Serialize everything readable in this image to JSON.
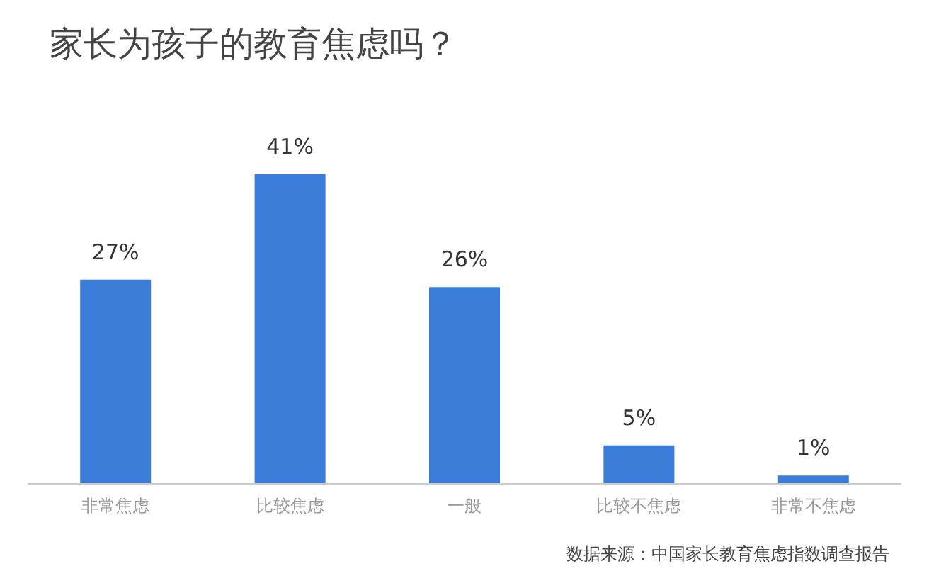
{
  "chart_data": {
    "type": "bar",
    "title": "家长为孩子的教育焦虑吗？",
    "categories": [
      "非常焦虑",
      "比较焦虑",
      "一般",
      "比较不焦虑",
      "非常不焦虑"
    ],
    "values": [
      27,
      41,
      26,
      5,
      1
    ],
    "value_labels": [
      "27%",
      "41%",
      "26%",
      "5%",
      "1%"
    ],
    "color": "#3a7dd8",
    "annotations": [
      "数据来源：中国家长教育焦虑指数调查报告"
    ]
  }
}
